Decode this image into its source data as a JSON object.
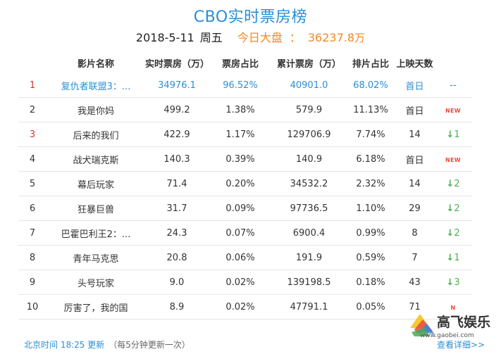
{
  "header": {
    "title": "CBO实时票房榜",
    "date": "2018-5-11",
    "weekday": "周五",
    "total_label": "今日大盘",
    "total_colon": "：",
    "total_value": "36237.8",
    "total_unit": "万"
  },
  "columns": [
    "影片名称",
    "实时票房（万）",
    "票房占比",
    "累计票房（万）",
    "排片占比",
    "上映天数"
  ],
  "rows": [
    {
      "rank": "1",
      "name": "复仇者联盟3：...",
      "realtime": "34976.1",
      "share": "96.52%",
      "cumulative": "40901.0",
      "schedule": "68.02%",
      "days": "首日",
      "trend_type": "flat",
      "trend_text": "--"
    },
    {
      "rank": "2",
      "name": "我是你妈",
      "realtime": "499.2",
      "share": "1.38%",
      "cumulative": "579.9",
      "schedule": "11.13%",
      "days": "首日",
      "trend_type": "new",
      "trend_text": "NEW"
    },
    {
      "rank": "3",
      "name": "后来的我们",
      "realtime": "422.9",
      "share": "1.17%",
      "cumulative": "129706.9",
      "schedule": "7.74%",
      "days": "14",
      "trend_type": "down",
      "trend_text": "1"
    },
    {
      "rank": "4",
      "name": "战犬瑞克斯",
      "realtime": "140.3",
      "share": "0.39%",
      "cumulative": "140.9",
      "schedule": "6.18%",
      "days": "首日",
      "trend_type": "new",
      "trend_text": "NEW"
    },
    {
      "rank": "5",
      "name": "幕后玩家",
      "realtime": "71.4",
      "share": "0.20%",
      "cumulative": "34532.2",
      "schedule": "2.32%",
      "days": "14",
      "trend_type": "down",
      "trend_text": "2"
    },
    {
      "rank": "6",
      "name": "狂暴巨兽",
      "realtime": "31.7",
      "share": "0.09%",
      "cumulative": "97736.5",
      "schedule": "1.10%",
      "days": "29",
      "trend_type": "down",
      "trend_text": "2"
    },
    {
      "rank": "7",
      "name": "巴霍巴利王2：...",
      "realtime": "24.3",
      "share": "0.07%",
      "cumulative": "6900.4",
      "schedule": "0.99%",
      "days": "8",
      "trend_type": "down",
      "trend_text": "2"
    },
    {
      "rank": "8",
      "name": "青年马克思",
      "realtime": "20.8",
      "share": "0.06%",
      "cumulative": "191.9",
      "schedule": "0.59%",
      "days": "7",
      "trend_type": "down",
      "trend_text": "1"
    },
    {
      "rank": "9",
      "name": "头号玩家",
      "realtime": "9.0",
      "share": "0.02%",
      "cumulative": "139198.5",
      "schedule": "0.18%",
      "days": "43",
      "trend_type": "down",
      "trend_text": "3"
    },
    {
      "rank": "10",
      "name": "厉害了，我的国",
      "realtime": "8.9",
      "share": "0.02%",
      "cumulative": "47791.1",
      "schedule": "0.05%",
      "days": "71",
      "trend_type": "new",
      "trend_text": "N"
    }
  ],
  "footer": {
    "update_time": "北京时间 18:25 更新",
    "note": "（每5分钟更新一次）",
    "more_link": "查看详细>>"
  },
  "watermark": {
    "text": "高飞娱乐",
    "url": "www.gaobei.com"
  },
  "colors": {
    "accent_blue": "#2a8fd6",
    "total_orange": "#f08a24",
    "rank_red": "#d9352b",
    "new_red": "#e64a3c",
    "down_green": "#4caf50"
  },
  "icons": {
    "down": "down-arrow-icon"
  }
}
